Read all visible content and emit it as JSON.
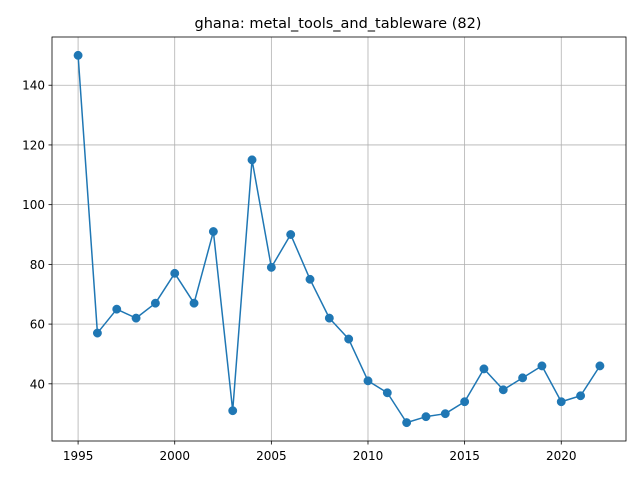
{
  "chart_data": {
    "type": "line",
    "title": "ghana: metal_tools_and_tableware (82)",
    "xlabel": "",
    "ylabel": "",
    "grid": true,
    "color": "#1f77b4",
    "xlim": [
      1993.65,
      2023.35
    ],
    "ylim": [
      20.85,
      156.15
    ],
    "xticks": [
      1995,
      2000,
      2005,
      2010,
      2015,
      2020
    ],
    "yticks": [
      40,
      60,
      80,
      100,
      120,
      140
    ],
    "x": [
      1995,
      1996,
      1997,
      1998,
      1999,
      2000,
      2001,
      2002,
      2003,
      2004,
      2005,
      2006,
      2007,
      2008,
      2009,
      2010,
      2011,
      2012,
      2013,
      2014,
      2015,
      2016,
      2017,
      2018,
      2019,
      2020,
      2021,
      2022
    ],
    "values": [
      150,
      57,
      65,
      62,
      67,
      77,
      67,
      91,
      31,
      115,
      79,
      90,
      75,
      62,
      55,
      41,
      37,
      27,
      29,
      30,
      34,
      45,
      38,
      42,
      46,
      34,
      36,
      46
    ]
  }
}
